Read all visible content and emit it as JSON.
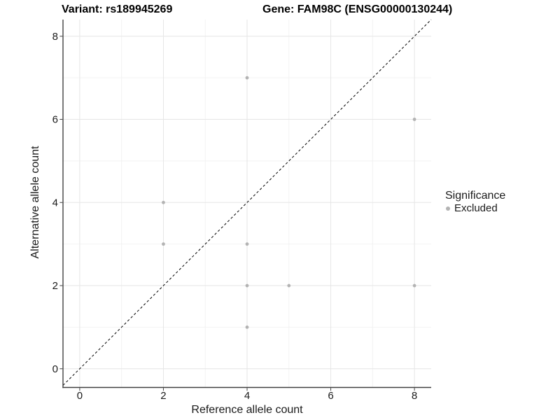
{
  "chart_data": {
    "type": "scatter",
    "title_left": "Variant: rs189945269",
    "title_right": "Gene: FAM98C (ENSG00000130244)",
    "xlabel": "Reference allele count",
    "ylabel": "Alternative allele count",
    "xlim": [
      -0.4,
      8.4
    ],
    "ylim": [
      -0.45,
      8.4
    ],
    "x_ticks": [
      0,
      2,
      4,
      6,
      8
    ],
    "y_ticks": [
      0,
      2,
      4,
      6,
      8
    ],
    "x_minor_ticks": [
      1,
      3,
      5,
      7
    ],
    "y_minor_ticks": [
      1,
      3,
      5,
      7
    ],
    "grid": true,
    "identity_line": {
      "slope": 1,
      "intercept": 0,
      "style": "dashed"
    },
    "series": [
      {
        "name": "Excluded",
        "points": [
          [
            2,
            3
          ],
          [
            2,
            4
          ],
          [
            4,
            1
          ],
          [
            4,
            2
          ],
          [
            4,
            3
          ],
          [
            4,
            7
          ],
          [
            5,
            2
          ],
          [
            8,
            2
          ],
          [
            8,
            6
          ]
        ]
      }
    ],
    "legend": {
      "position": "right",
      "title": "Significance",
      "items": [
        {
          "label": "Excluded",
          "color": "#b3b3b3"
        }
      ]
    },
    "colors": {
      "point": "#b3b3b3",
      "grid_major": "#e6e6e6",
      "grid_minor": "#f2f2f2",
      "axis_line": "#404040",
      "tick_text": "#1a1a1a",
      "identity_line": "#000000"
    }
  }
}
